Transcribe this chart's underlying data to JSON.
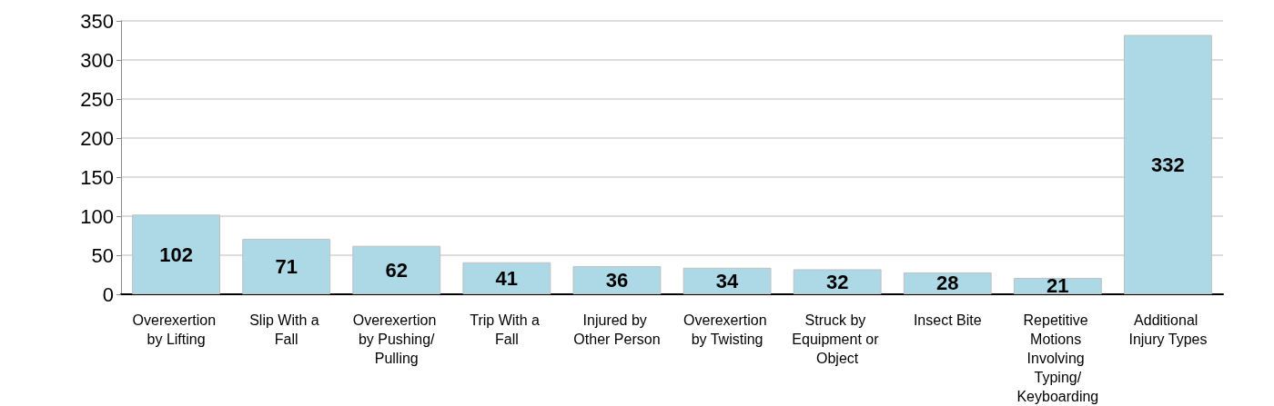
{
  "chart_data": {
    "type": "bar",
    "categories": [
      "Overexertion by Lifting",
      "Slip With a Fall",
      "Overexertion by Pushing/Pulling",
      "Trip With a Fall",
      "Injured by Other Person",
      "Overexertion by Twisting",
      "Struck by Equipment or Object",
      "Insect Bite",
      "Repetitive Motions Involving Typing/Keyboarding",
      "Additional Injury Types"
    ],
    "values": [
      102,
      71,
      62,
      41,
      36,
      34,
      32,
      28,
      21,
      332
    ],
    "color": "#add8e6",
    "ylim": [
      0,
      350
    ],
    "yticks": [
      0,
      50,
      100,
      150,
      200,
      250,
      300,
      350
    ],
    "grid": "y",
    "data_labels": true
  }
}
